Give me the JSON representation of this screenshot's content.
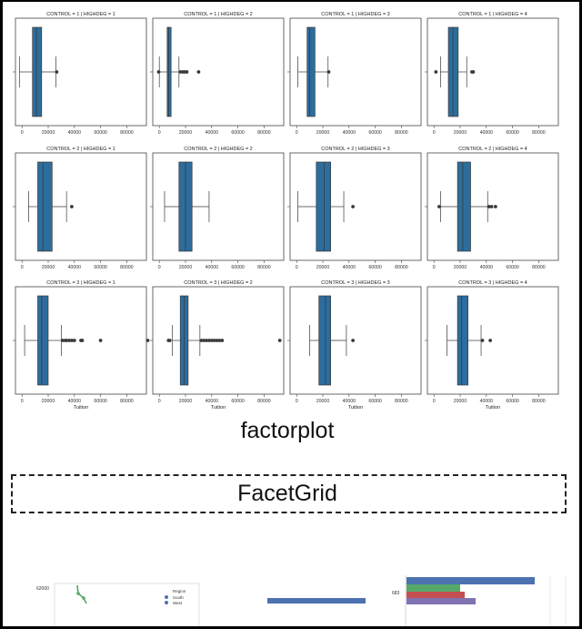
{
  "chart_data": {
    "type": "box",
    "row_var": "CONTROL",
    "col_var": "HIGHDEG",
    "xlabel": "Tuition",
    "x_ticks": [
      "0",
      "20000",
      "40000",
      "60000",
      "80000"
    ],
    "xlim": [
      -5000,
      95000
    ],
    "facets": [
      {
        "title": "CONTROL = 1 | HIGHDEG = 1",
        "q1": 8000,
        "median": 11000,
        "q3": 15000,
        "whisker_low": -2000,
        "whisker_high": 26000,
        "outliers": [
          26500
        ]
      },
      {
        "title": "CONTROL = 1 | HIGHDEG = 2",
        "q1": 6000,
        "median": 7000,
        "q3": 9000,
        "whisker_low": 0,
        "whisker_high": 15000,
        "outliers": [
          -500,
          16000,
          18000,
          19500,
          21000,
          30000
        ]
      },
      {
        "title": "CONTROL = 1 | HIGHDEG = 3",
        "q1": 8000,
        "median": 10000,
        "q3": 14000,
        "whisker_low": 1000,
        "whisker_high": 24000,
        "outliers": [
          24500
        ]
      },
      {
        "title": "CONTROL = 1 | HIGHDEG = 4",
        "q1": 11000,
        "median": 14500,
        "q3": 18500,
        "whisker_low": 5000,
        "whisker_high": 25000,
        "outliers": [
          1500,
          29000,
          30000
        ]
      },
      {
        "title": "CONTROL = 2 | HIGHDEG = 1",
        "q1": 12000,
        "median": 16000,
        "q3": 23000,
        "whisker_low": 5000,
        "whisker_high": 34000,
        "outliers": [
          38000
        ]
      },
      {
        "title": "CONTROL = 2 | HIGHDEG = 2",
        "q1": 15000,
        "median": 20000,
        "q3": 25000,
        "whisker_low": 4000,
        "whisker_high": 38000,
        "outliers": []
      },
      {
        "title": "CONTROL = 2 | HIGHDEG = 3",
        "q1": 15000,
        "median": 21000,
        "q3": 26000,
        "whisker_low": 1000,
        "whisker_high": 36000,
        "outliers": [
          43000
        ]
      },
      {
        "title": "CONTROL = 2 | HIGHDEG = 4",
        "q1": 18000,
        "median": 22000,
        "q3": 28000,
        "whisker_low": 5000,
        "whisker_high": 41000,
        "outliers": [
          4000,
          42000,
          44000,
          47000
        ]
      },
      {
        "title": "CONTROL = 3 | HIGHDEG = 1",
        "q1": 12000,
        "median": 15000,
        "q3": 20000,
        "whisker_low": 2000,
        "whisker_high": 30000,
        "outliers": [
          31000,
          33000,
          34000,
          36000,
          38000,
          40000,
          45000,
          46000,
          60000,
          96000
        ]
      },
      {
        "title": "CONTROL = 3 | HIGHDEG = 2",
        "q1": 16000,
        "median": 19000,
        "q3": 22000,
        "whisker_low": 10000,
        "whisker_high": 31000,
        "outliers": [
          7000,
          8000,
          32000,
          34000,
          36000,
          38000,
          40000,
          42000,
          44000,
          46000,
          48000,
          92000
        ]
      },
      {
        "title": "CONTROL = 3 | HIGHDEG = 3",
        "q1": 17000,
        "median": 22000,
        "q3": 26000,
        "whisker_low": 10000,
        "whisker_high": 38000,
        "outliers": [
          43000
        ]
      },
      {
        "title": "CONTROL = 3 | HIGHDEG = 4",
        "q1": 18000,
        "median": 21000,
        "q3": 26000,
        "whisker_low": 10000,
        "whisker_high": 36000,
        "outliers": [
          37000,
          43000
        ]
      }
    ]
  },
  "captions": {
    "factorplot": "factorplot",
    "facetgrid": "FacetGrid"
  },
  "bottom_preview": {
    "line_chart": {
      "ytick": "62000",
      "legend_title": "Region",
      "legend_items": [
        "South",
        "West"
      ]
    },
    "bar_chart_label": "683"
  },
  "colors": {
    "box_fill": "#2d6d9d",
    "box_edge": "#3a3a3a",
    "legend_blue": "#4c72b0",
    "legend_green": "#55a868",
    "legend_red": "#c44e52",
    "legend_purple": "#8172b2"
  }
}
